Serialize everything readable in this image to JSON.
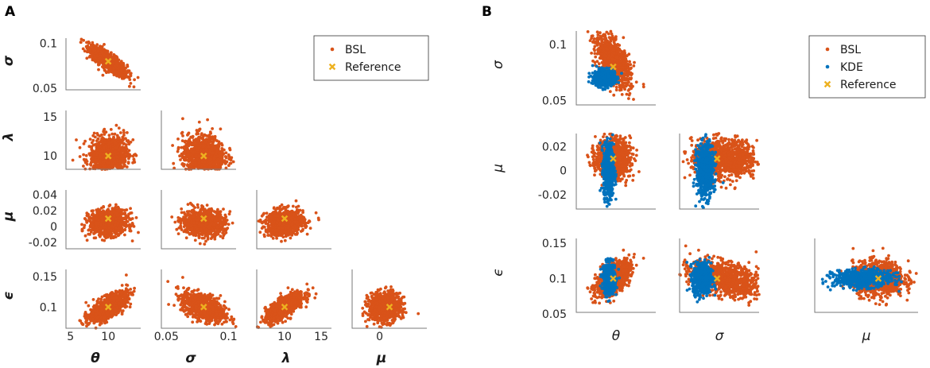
{
  "figure": {
    "panel_labels": [
      "A",
      "B"
    ]
  },
  "colors": {
    "bsl": "#d95319",
    "kde": "#0072bd",
    "reference": "#edb120",
    "axis": "#7a7a7a"
  },
  "chart_data": [
    {
      "type": "scatter",
      "panel": "A",
      "title": "",
      "parameters": [
        "θ",
        "σ",
        "λ",
        "μ",
        "ϵ"
      ],
      "x_axis_labels": [
        "θ",
        "σ",
        "λ",
        "μ"
      ],
      "y_axis_labels": [
        "σ",
        "λ",
        "μ",
        "ϵ"
      ],
      "legend": {
        "entries": [
          "BSL",
          "Reference"
        ],
        "placement": "top-right"
      },
      "axes": {
        "theta": {
          "range": [
            5,
            14
          ],
          "ticks": [
            "5",
            "10"
          ]
        },
        "sigma": {
          "range": [
            0.05,
            0.105
          ],
          "ticks": [
            "0.05",
            "0.1"
          ]
        },
        "lambda": {
          "range": [
            7.5,
            16
          ],
          "ticks": [
            "10",
            "15"
          ]
        },
        "mu": {
          "range": [
            -0.025,
            0.045
          ],
          "ticks": [
            "-0.02",
            "0",
            "0.02",
            "0.04"
          ]
        },
        "epsilon": {
          "range": [
            0.065,
            0.16
          ],
          "ticks": [
            "0.1",
            "0.15"
          ]
        }
      },
      "reference": {
        "theta": 10,
        "sigma": 0.08,
        "lambda": 10,
        "mu": 0.01,
        "epsilon": 0.1
      },
      "series": [
        {
          "name": "BSL",
          "color": "#d95319"
        },
        {
          "name": "Reference",
          "color": "#edb120"
        }
      ]
    },
    {
      "type": "scatter",
      "panel": "B",
      "title": "",
      "parameters": [
        "θ",
        "σ",
        "μ",
        "ϵ"
      ],
      "x_axis_labels": [
        "θ",
        "σ",
        "μ"
      ],
      "y_axis_labels": [
        "σ",
        "μ",
        "ϵ"
      ],
      "legend": {
        "entries": [
          "BSL",
          "KDE",
          "Reference"
        ],
        "placement": "top-right"
      },
      "axes": {
        "sigma": {
          "range": [
            0.045,
            0.11
          ],
          "ticks": [
            "0.05",
            "0.1"
          ]
        },
        "mu": {
          "range": [
            -0.032,
            0.03
          ],
          "ticks": [
            "-0.02",
            "0",
            "0.02"
          ]
        },
        "epsilon": {
          "range": [
            0.05,
            0.155
          ],
          "ticks": [
            "0.05",
            "0.1",
            "0.15"
          ]
        }
      },
      "reference": {
        "theta": 10,
        "sigma": 0.08,
        "mu": 0.01,
        "epsilon": 0.1
      },
      "series": [
        {
          "name": "BSL",
          "color": "#d95319"
        },
        {
          "name": "KDE",
          "color": "#0072bd"
        },
        {
          "name": "Reference",
          "color": "#edb120"
        }
      ]
    }
  ]
}
